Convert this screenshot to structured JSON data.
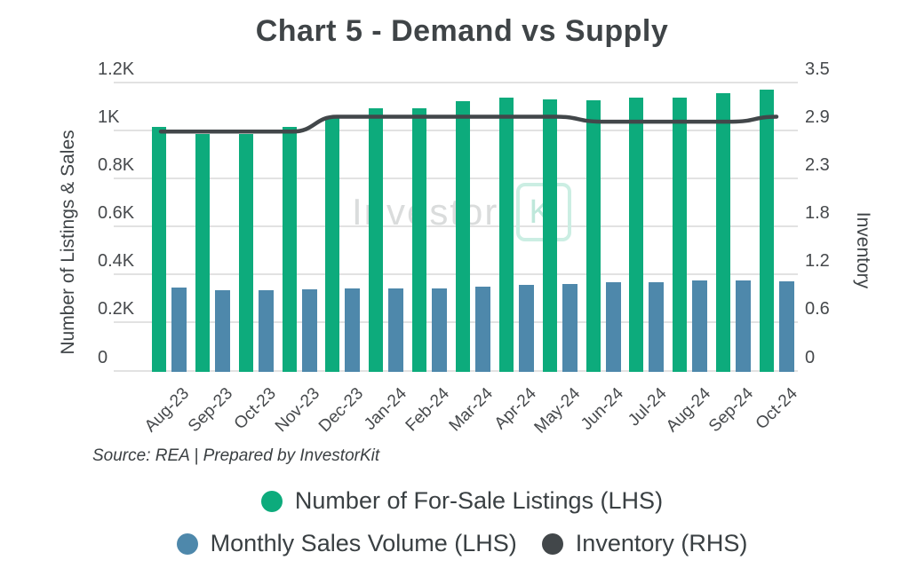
{
  "title": "Chart 5 - Demand vs Supply",
  "source_note": "Source: REA | Prepared by InvestorKit",
  "watermark": {
    "gray_text": "Investor",
    "boxed_text": "Ki"
  },
  "legend": {
    "items": [
      {
        "label": "Number of For-Sale Listings (LHS)",
        "color": "#0dab7c"
      },
      {
        "label": "Monthly Sales Volume (LHS)",
        "color": "#4e88ab"
      },
      {
        "label": "Inventory (RHS)",
        "color": "#42474a"
      }
    ]
  },
  "colors": {
    "listings_green": "#0dab7c",
    "sales_blue": "#4e88ab",
    "inventory_dark": "#42474a",
    "gridline": "#e2e2e2",
    "axis_text": "#46494c",
    "title_text": "#3f4447",
    "watermark_gray": "#dadcdc",
    "watermark_teal": "#bfe8db"
  },
  "chart_data": {
    "type": "bar",
    "title": "Chart 5 - Demand vs Supply",
    "categories": [
      "Aug-23",
      "Sep-23",
      "Oct-23",
      "Nov-23",
      "Dec-23",
      "Jan-24",
      "Feb-24",
      "Mar-24",
      "Apr-24",
      "May-24",
      "Jun-24",
      "Jul-24",
      "Aug-24",
      "Sep-24",
      "Oct-24"
    ],
    "series": [
      {
        "name": "Number of For-Sale Listings (LHS)",
        "type": "bar",
        "axis": "left",
        "color": "#0dab7c",
        "values": [
          1020,
          990,
          990,
          1020,
          1065,
          1095,
          1095,
          1125,
          1140,
          1135,
          1130,
          1140,
          1140,
          1160,
          1175
        ]
      },
      {
        "name": "Monthly Sales Volume (LHS)",
        "type": "bar",
        "axis": "left",
        "color": "#4e88ab",
        "values": [
          350,
          340,
          340,
          345,
          348,
          348,
          348,
          355,
          362,
          366,
          374,
          374,
          380,
          382,
          375
        ]
      },
      {
        "name": "Inventory (RHS)",
        "type": "line",
        "axis": "right",
        "color": "#42474a",
        "values": [
          2.9,
          2.9,
          2.9,
          2.9,
          3.08,
          3.08,
          3.08,
          3.08,
          3.08,
          3.08,
          3.02,
          3.02,
          3.02,
          3.02,
          3.08
        ]
      }
    ],
    "left_axis": {
      "label": "Number of Listings & Sales",
      "min": 0,
      "max": 1200,
      "tick_labels": [
        "1.2K",
        "1K",
        "0.8K",
        "0.6K",
        "0.4K",
        "0.2K",
        "0"
      ]
    },
    "right_axis": {
      "label": "Inventory",
      "min": 0,
      "max": 3.5,
      "tick_labels": [
        "3.5",
        "2.9",
        "2.3",
        "1.8",
        "1.2",
        "0.6",
        "0"
      ]
    },
    "grid": true,
    "legend_position": "bottom"
  }
}
